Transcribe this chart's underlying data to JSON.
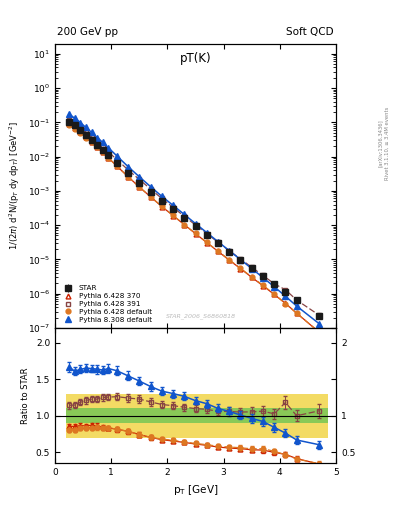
{
  "title_top_left": "200 GeV pp",
  "title_top_right": "Soft QCD",
  "plot_title": "pT(K)",
  "right_label": "Rivet 3.1.10, ≥ 3.4M events",
  "watermark": "STAR_2006_S6860818",
  "arxiv_label": "[arXiv:1306.3436]",
  "xlabel": "p_{T} [GeV]",
  "ylabel": "1/(2π) d²N/(p_T dy dp_T) [GeV⁻²]",
  "ylabel_ratio": "Ratio to STAR",
  "star_x": [
    0.25,
    0.35,
    0.45,
    0.55,
    0.65,
    0.75,
    0.85,
    0.95,
    1.1,
    1.3,
    1.5,
    1.7,
    1.9,
    2.1,
    2.3,
    2.5,
    2.7,
    2.9,
    3.1,
    3.3,
    3.5,
    3.7,
    3.9,
    4.1,
    4.3,
    4.7
  ],
  "star_y": [
    0.105,
    0.082,
    0.06,
    0.043,
    0.031,
    0.022,
    0.016,
    0.011,
    0.0065,
    0.0033,
    0.00175,
    0.00095,
    0.00052,
    0.00029,
    0.000162,
    9.2e-05,
    5.2e-05,
    3e-05,
    1.7e-05,
    9.8e-06,
    5.6e-06,
    3.2e-06,
    1.9e-06,
    1.1e-06,
    6.5e-07,
    2.2e-07
  ],
  "star_yerr": [
    0.004,
    0.003,
    0.002,
    0.0015,
    0.001,
    0.0008,
    0.0006,
    0.0004,
    0.00025,
    0.00013,
    7e-05,
    4e-05,
    2.2e-05,
    1.2e-05,
    7e-06,
    4e-06,
    2.5e-06,
    1.5e-06,
    9e-07,
    5.5e-07,
    3.5e-07,
    2e-07,
    1.3e-07,
    8e-08,
    5e-08,
    2e-08
  ],
  "py6_370_x": [
    0.25,
    0.35,
    0.45,
    0.55,
    0.65,
    0.75,
    0.85,
    0.95,
    1.1,
    1.3,
    1.5,
    1.7,
    1.9,
    2.1,
    2.3,
    2.5,
    2.7,
    2.9,
    3.1,
    3.3,
    3.5,
    3.7,
    3.9,
    4.1,
    4.3,
    4.7
  ],
  "py6_370_y": [
    0.09,
    0.07,
    0.052,
    0.037,
    0.027,
    0.019,
    0.0135,
    0.0092,
    0.0053,
    0.0026,
    0.0013,
    0.00067,
    0.00035,
    0.00019,
    0.000103,
    5.65e-05,
    3.1e-05,
    1.72e-05,
    9.5e-06,
    5.4e-06,
    3e-06,
    1.7e-06,
    9.5e-07,
    5.2e-07,
    2.7e-07,
    7.5e-08
  ],
  "py6_391_x": [
    0.25,
    0.35,
    0.45,
    0.55,
    0.65,
    0.75,
    0.85,
    0.95,
    1.1,
    1.3,
    1.5,
    1.7,
    1.9,
    2.1,
    2.3,
    2.5,
    2.7,
    2.9,
    3.1,
    3.3,
    3.5,
    3.7,
    3.9,
    4.1,
    4.3,
    4.7
  ],
  "py6_391_y": [
    0.12,
    0.094,
    0.071,
    0.052,
    0.038,
    0.027,
    0.02,
    0.0138,
    0.0082,
    0.0041,
    0.00215,
    0.00113,
    0.0006,
    0.00033,
    0.000181,
    0.000101,
    5.66e-05,
    3.18e-05,
    1.8e-05,
    1.03e-05,
    5.9e-06,
    3.4e-06,
    1.95e-06,
    1.3e-06,
    6.5e-07,
    2.35e-07
  ],
  "py6_def_x": [
    0.25,
    0.35,
    0.45,
    0.55,
    0.65,
    0.75,
    0.85,
    0.95,
    1.1,
    1.3,
    1.5,
    1.7,
    1.9,
    2.1,
    2.3,
    2.5,
    2.7,
    2.9,
    3.1,
    3.3,
    3.5,
    3.7,
    3.9,
    4.1,
    4.3,
    4.7
  ],
  "py6_def_y": [
    0.085,
    0.066,
    0.05,
    0.036,
    0.026,
    0.0185,
    0.0133,
    0.0092,
    0.0053,
    0.0026,
    0.0013,
    0.00067,
    0.000355,
    0.000193,
    0.000104,
    5.72e-05,
    3.15e-05,
    1.75e-05,
    9.75e-06,
    5.52e-06,
    3.07e-06,
    1.76e-06,
    9.8e-07,
    5.15e-07,
    2.66e-07,
    7.6e-08
  ],
  "py8_def_x": [
    0.25,
    0.35,
    0.45,
    0.55,
    0.65,
    0.75,
    0.85,
    0.95,
    1.1,
    1.3,
    1.5,
    1.7,
    1.9,
    2.1,
    2.3,
    2.5,
    2.7,
    2.9,
    3.1,
    3.3,
    3.5,
    3.7,
    3.9,
    4.1,
    4.3,
    4.7
  ],
  "py8_def_y": [
    0.175,
    0.132,
    0.098,
    0.071,
    0.051,
    0.036,
    0.026,
    0.0181,
    0.0105,
    0.0051,
    0.00258,
    0.00133,
    0.000695,
    0.000378,
    0.000205,
    0.000111,
    6.06e-05,
    3.3e-05,
    1.8e-05,
    9.9e-06,
    5.4e-06,
    2.95e-06,
    1.6e-06,
    8.4e-07,
    4.35e-07,
    1.33e-07
  ],
  "color_star": "#1a1a1a",
  "color_py6_370": "#cc2200",
  "color_py6_391": "#884444",
  "color_py6_def": "#dd7722",
  "color_py8_def": "#1155cc",
  "xlim": [
    0,
    5.0
  ],
  "ylim_main": [
    1e-07,
    20.0
  ],
  "ylim_ratio": [
    0.35,
    2.2
  ],
  "ratio_yticks": [
    0.5,
    1.0,
    1.5,
    2.0
  ],
  "ratio_yticklabels": [
    "0.5",
    "1",
    "",
    "2"
  ]
}
